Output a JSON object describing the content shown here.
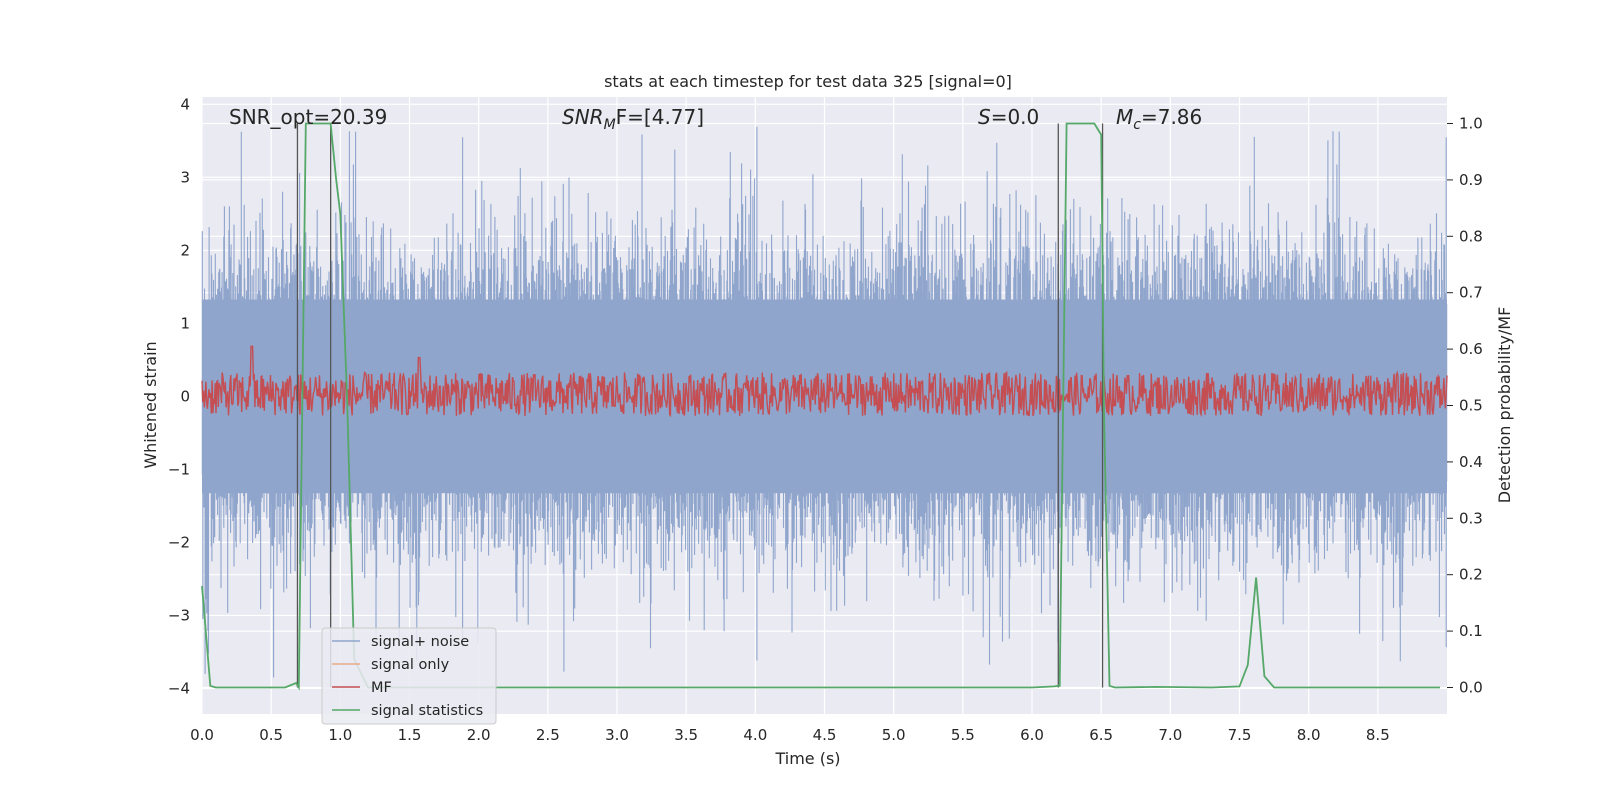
{
  "chart_data": {
    "type": "line",
    "title": "stats at each timestep for test data 325 [signal=0]",
    "xlabel": "Time (s)",
    "ylabel_left": "Whitened strain",
    "ylabel_right": "Detection probability/MF",
    "xlim": [
      0,
      9.0
    ],
    "ylim_left": [
      -4.35,
      4.1
    ],
    "ylim_right": [
      -0.047,
      1.047
    ],
    "xticks": [
      0.0,
      0.5,
      1.0,
      1.5,
      2.0,
      2.5,
      3.0,
      3.5,
      4.0,
      4.5,
      5.0,
      5.5,
      6.0,
      6.5,
      7.0,
      7.5,
      8.0,
      8.5
    ],
    "xtick_labels": [
      "0.0",
      "0.5",
      "1.0",
      "1.5",
      "2.0",
      "2.5",
      "3.0",
      "3.5",
      "4.0",
      "4.5",
      "5.0",
      "5.5",
      "6.0",
      "6.5",
      "7.0",
      "7.5",
      "8.0",
      "8.5"
    ],
    "yticks_left": [
      4,
      3,
      2,
      1,
      0,
      -1,
      -2,
      -3,
      -4
    ],
    "ytick_labels_left": [
      "4",
      "3",
      "2",
      "1",
      "0",
      "−1",
      "−2",
      "−3",
      "−4"
    ],
    "yticks_right": [
      1.0,
      0.9,
      0.8,
      0.7,
      0.6,
      0.5,
      0.4,
      0.3,
      0.2,
      0.1,
      0.0
    ],
    "ytick_labels_right": [
      "1.0",
      "0.9",
      "0.8",
      "0.7",
      "0.6",
      "0.5",
      "0.4",
      "0.3",
      "0.2",
      "0.1",
      "0.0"
    ],
    "grid": true,
    "legend_position": "lower-left",
    "annotations": {
      "snr_opt": "SNR_opt=20.39",
      "snr_mf_main": "SNR",
      "snr_mf_sub": "M",
      "snr_mf_rest": "F=[4.77]",
      "s_main": "S",
      "s_rest": "=0.0",
      "mc_main": "M",
      "mc_sub": "c",
      "mc_rest": "=7.86"
    },
    "series": [
      {
        "name": "signal+ noise",
        "color": "#8fa5cc",
        "axis": "left",
        "description_stats": {
          "envelope_typical_max": 1.7,
          "envelope_typical_min": -1.7,
          "peak_max": 3.7,
          "peak_min": -3.85
        }
      },
      {
        "name": "signal only",
        "color": "#e8a98a",
        "axis": "left"
      },
      {
        "name": "MF",
        "color": "#c44e52",
        "axis": "right",
        "description_stats": {
          "baseline": 0.52,
          "min": 0.51,
          "max": 0.58,
          "spikes": [
            [
              0.36,
              0.605
            ],
            [
              1.57,
              0.585
            ]
          ]
        }
      },
      {
        "name": "signal statistics",
        "color": "#55a868",
        "axis": "right",
        "x": [
          0.0,
          0.06,
          0.1,
          0.2,
          0.4,
          0.6,
          0.68,
          0.7,
          0.75,
          0.78,
          0.9,
          0.93,
          0.97,
          1.0,
          1.05,
          1.1,
          1.2,
          2.0,
          4.0,
          6.0,
          6.16,
          6.19,
          6.2,
          6.25,
          6.3,
          6.45,
          6.5,
          6.52,
          6.56,
          6.6,
          6.9,
          7.3,
          7.5,
          7.56,
          7.62,
          7.68,
          7.75,
          7.9,
          8.5,
          8.95
        ],
        "y": [
          0.18,
          0.003,
          0.0,
          0.0,
          0.0,
          0.0,
          0.008,
          0.0,
          1.0,
          1.0,
          1.0,
          1.0,
          0.9,
          0.84,
          0.5,
          0.05,
          0.0,
          0.0,
          0.0,
          0.0,
          0.002,
          0.003,
          0.003,
          1.0,
          1.0,
          1.0,
          0.98,
          0.5,
          0.003,
          0.0,
          0.001,
          0.0,
          0.002,
          0.04,
          0.195,
          0.02,
          0.0,
          0.0,
          0.0,
          0.0
        ]
      }
    ],
    "vertical_lines_x": [
      0.69,
      0.93,
      6.19,
      6.51
    ]
  }
}
